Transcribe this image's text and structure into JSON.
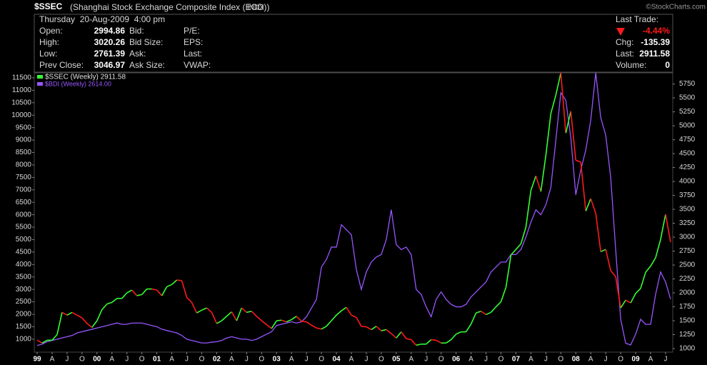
{
  "header": {
    "symbol": "$SSEC",
    "name": "(Shanghai Stock Exchange Composite Index (EOD))",
    "exchange": "INDX",
    "credit": "©StockCharts.com",
    "datetime": "Thursday  20-Aug-2009  4:00 pm",
    "fields": [
      [
        "Open:",
        "2994.86"
      ],
      [
        "High:",
        "3020.26"
      ],
      [
        "Low:",
        "2761.39"
      ],
      [
        "Prev Close:",
        "3046.97"
      ]
    ],
    "labels2": [
      "Bid:",
      "Bid Size:",
      "Ask:",
      "Ask Size:"
    ],
    "labels3": [
      "P/E:",
      "EPS:",
      "Last:",
      "VWAP:"
    ],
    "last_trade": "Last Trade:",
    "pct_change": "-4.44%",
    "change": [
      "Chg:",
      "-135.39"
    ],
    "last": [
      "Last:",
      "2911.58"
    ],
    "volume": [
      "Volume:",
      "0"
    ]
  },
  "chart_data": {
    "type": "line",
    "grid": false,
    "categories": [
      "99",
      null,
      null,
      "A",
      null,
      null,
      "J",
      null,
      null,
      "O",
      null,
      null,
      "00",
      null,
      null,
      "A",
      null,
      null,
      "J",
      null,
      null,
      "O",
      null,
      null,
      "01",
      null,
      null,
      "A",
      null,
      null,
      "J",
      null,
      null,
      "O",
      null,
      null,
      "02",
      null,
      null,
      "A",
      null,
      null,
      "J",
      null,
      null,
      "O",
      null,
      null,
      "03",
      null,
      null,
      "A",
      null,
      null,
      "J",
      null,
      null,
      "O",
      null,
      null,
      "04",
      null,
      null,
      "A",
      null,
      null,
      "J",
      null,
      null,
      "O",
      null,
      null,
      "05",
      null,
      null,
      "A",
      null,
      null,
      "J",
      null,
      null,
      "O",
      null,
      null,
      "06",
      null,
      null,
      "A",
      null,
      null,
      "J",
      null,
      null,
      "O",
      null,
      null,
      "07",
      null,
      null,
      "A",
      null,
      null,
      "J",
      null,
      null,
      "O",
      null,
      null,
      "08",
      null,
      null,
      "A",
      null,
      null,
      "J",
      null,
      null,
      "O",
      null,
      null,
      "09",
      null,
      null,
      "A",
      null,
      null,
      "J",
      null
    ],
    "ylim": [
      480,
      11700
    ],
    "yticks": [
      1000,
      1500,
      2000,
      2500,
      3000,
      3500,
      4000,
      4500,
      5000,
      5500,
      6000,
      6500,
      7000,
      7500,
      8000,
      8500,
      9000,
      9500,
      10000,
      10500,
      11000,
      11500
    ],
    "y2lim": [
      936,
      5950
    ],
    "y2ticks": [
      1000,
      1250,
      1500,
      1750,
      2000,
      2250,
      2500,
      2750,
      3000,
      3250,
      3500,
      3750,
      4000,
      4250,
      4500,
      4750,
      5000,
      5250,
      5500,
      5750
    ],
    "series": [
      {
        "name": "$SSEC (Weekly) 2911.58",
        "axis": "y2",
        "color": "#33ff33",
        "down_color": "#ff1a1a",
        "values": [
          1150,
          1100,
          1150,
          1150,
          1250,
          1650,
          1600,
          1650,
          1600,
          1550,
          1450,
          1380,
          1500,
          1700,
          1800,
          1830,
          1900,
          1900,
          2000,
          2050,
          1950,
          1970,
          2070,
          2070,
          2050,
          1950,
          2110,
          2150,
          2230,
          2220,
          1920,
          1830,
          1640,
          1690,
          1730,
          1650,
          1450,
          1500,
          1580,
          1660,
          1500,
          1730,
          1650,
          1670,
          1580,
          1500,
          1430,
          1360,
          1500,
          1510,
          1480,
          1520,
          1580,
          1490,
          1480,
          1420,
          1370,
          1350,
          1400,
          1500,
          1600,
          1680,
          1740,
          1600,
          1560,
          1400,
          1390,
          1340,
          1400,
          1320,
          1340,
          1270,
          1190,
          1300,
          1180,
          1160,
          1060,
          1080,
          1080,
          1160,
          1150,
          1100,
          1100,
          1160,
          1260,
          1300,
          1300,
          1440,
          1640,
          1670,
          1610,
          1650,
          1750,
          1840,
          2100,
          2680,
          2780,
          2880,
          3180,
          3840,
          4100,
          3820,
          4470,
          5220,
          5550,
          5950,
          4870,
          5260,
          4380,
          4350,
          3470,
          3690,
          3430,
          2740,
          2780,
          2400,
          2290,
          1730,
          1870,
          1820,
          1990,
          2080,
          2370,
          2480,
          2630,
          2960,
          3410,
          2911.58
        ]
      },
      {
        "name": "$BDI (Weekly) 2614.00",
        "color": "#9955ff",
        "values": [
          750,
          800,
          900,
          950,
          1000,
          1050,
          1100,
          1150,
          1250,
          1300,
          1350,
          1400,
          1450,
          1500,
          1550,
          1600,
          1650,
          1600,
          1600,
          1650,
          1650,
          1650,
          1600,
          1550,
          1500,
          1400,
          1350,
          1300,
          1250,
          1150,
          1000,
          950,
          900,
          850,
          850,
          880,
          900,
          950,
          1050,
          1100,
          1050,
          1000,
          1000,
          950,
          1000,
          1100,
          1200,
          1300,
          1550,
          1600,
          1650,
          1700,
          1650,
          1700,
          1900,
          2250,
          2600,
          3900,
          4200,
          4700,
          4700,
          5600,
          5400,
          5200,
          3800,
          3000,
          3700,
          4100,
          4300,
          4400,
          5000,
          6200,
          4800,
          4600,
          4700,
          4400,
          3000,
          2800,
          2300,
          1900,
          2600,
          2900,
          2600,
          2400,
          2300,
          2300,
          2400,
          2700,
          2900,
          3100,
          3300,
          3700,
          3900,
          4100,
          4100,
          4400,
          4400,
          4600,
          5100,
          5700,
          6200,
          6000,
          6400,
          7100,
          9000,
          10900,
          10600,
          9100,
          6800,
          7800,
          8600,
          9800,
          11700,
          9900,
          9200,
          7500,
          4600,
          1800,
          840,
          770,
          1200,
          1800,
          1600,
          1600,
          2800,
          3700,
          3300,
          2614
        ]
      }
    ]
  }
}
